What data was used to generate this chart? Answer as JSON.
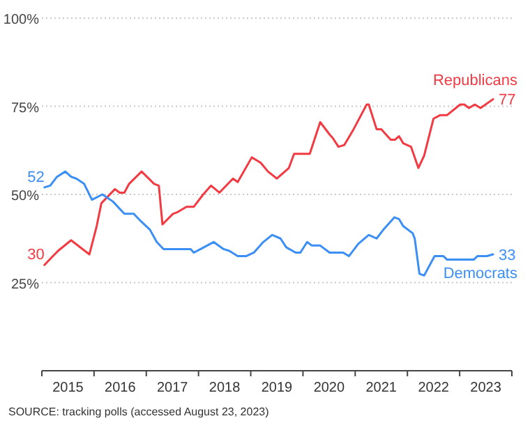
{
  "chart_data": {
    "type": "line",
    "xlim": [
      2015,
      2024
    ],
    "ylim": [
      0,
      100
    ],
    "xticks": [
      {
        "value": 2015,
        "label": null
      },
      {
        "value": 2015.5,
        "label": "2015"
      },
      {
        "value": 2016,
        "label": null
      },
      {
        "value": 2016.5,
        "label": "2016"
      },
      {
        "value": 2017,
        "label": null
      },
      {
        "value": 2017.5,
        "label": "2017"
      },
      {
        "value": 2018,
        "label": null
      },
      {
        "value": 2018.5,
        "label": "2018"
      },
      {
        "value": 2019,
        "label": null
      },
      {
        "value": 2019.5,
        "label": "2019"
      },
      {
        "value": 2020,
        "label": null
      },
      {
        "value": 2020.5,
        "label": "2020"
      },
      {
        "value": 2021,
        "label": null
      },
      {
        "value": 2021.5,
        "label": "2021"
      },
      {
        "value": 2022,
        "label": null
      },
      {
        "value": 2022.5,
        "label": "2022"
      },
      {
        "value": 2023,
        "label": null
      },
      {
        "value": 2023.5,
        "label": "2023"
      },
      {
        "value": 2024,
        "label": null
      }
    ],
    "yticks": [
      {
        "value": 25,
        "label": "25%"
      },
      {
        "value": 50,
        "label": "50%"
      },
      {
        "value": 75,
        "label": "75%"
      },
      {
        "value": 100,
        "label": "100%"
      }
    ],
    "grid": "y",
    "marker": "none",
    "line_style": "solid",
    "series": [
      {
        "name": "Republicans",
        "color": "#f23a43",
        "x": [
          2015.05,
          2015.18,
          2015.31,
          2015.56,
          2015.91,
          2016.05,
          2016.14,
          2016.4,
          2016.49,
          2016.58,
          2016.67,
          2016.91,
          2017.15,
          2017.24,
          2017.31,
          2017.51,
          2017.6,
          2017.77,
          2017.91,
          2018.09,
          2018.24,
          2018.4,
          2018.66,
          2018.75,
          2019.02,
          2019.19,
          2019.33,
          2019.5,
          2019.73,
          2019.83,
          2020.13,
          2020.33,
          2020.51,
          2020.57,
          2020.68,
          2020.79,
          2020.97,
          2021.22,
          2021.26,
          2021.41,
          2021.5,
          2021.68,
          2021.76,
          2021.84,
          2021.92,
          2022.07,
          2022.21,
          2022.32,
          2022.5,
          2022.63,
          2022.76,
          2023.01,
          2023.09,
          2023.18,
          2023.29,
          2023.4,
          2023.64
        ],
        "values": [
          30,
          32,
          34,
          37,
          33,
          41,
          47.5,
          51.5,
          50.5,
          50.5,
          53,
          56.5,
          53,
          52.5,
          41.5,
          44.5,
          45,
          46.5,
          46.5,
          50,
          52.5,
          50.5,
          54.5,
          53.5,
          60.5,
          59,
          56.5,
          54.5,
          57.5,
          61.5,
          61.5,
          70.5,
          67,
          66,
          63.5,
          64,
          68.5,
          75.5,
          75.5,
          68.5,
          68.5,
          65.5,
          65.5,
          66.5,
          64.5,
          63.5,
          57.5,
          61,
          71.5,
          72.5,
          72.5,
          75.5,
          75.5,
          74.5,
          75.5,
          74.5,
          77
        ],
        "value_labels": [
          "30",
          null,
          null,
          null,
          null,
          null,
          null,
          null,
          null,
          null,
          null,
          null,
          null,
          null,
          null,
          null,
          null,
          null,
          null,
          null,
          null,
          null,
          null,
          null,
          null,
          null,
          null,
          null,
          null,
          null,
          null,
          null,
          null,
          null,
          null,
          null,
          null,
          null,
          null,
          null,
          null,
          null,
          null,
          null,
          null,
          null,
          null,
          null,
          null,
          null,
          null,
          null,
          null,
          null,
          null,
          null,
          "77"
        ]
      },
      {
        "name": "Democrats",
        "color": "#3b8ef3",
        "x": [
          2015.05,
          2015.16,
          2015.29,
          2015.45,
          2015.56,
          2015.66,
          2015.81,
          2015.96,
          2016.16,
          2016.36,
          2016.58,
          2016.76,
          2016.89,
          2017.07,
          2017.2,
          2017.33,
          2017.85,
          2017.91,
          2018.04,
          2018.29,
          2018.48,
          2018.59,
          2018.75,
          2018.91,
          2019.06,
          2019.24,
          2019.41,
          2019.57,
          2019.68,
          2019.86,
          2019.95,
          2020.08,
          2020.17,
          2020.33,
          2020.51,
          2020.77,
          2020.88,
          2021.06,
          2021.26,
          2021.41,
          2021.54,
          2021.75,
          2021.84,
          2021.92,
          2022.1,
          2022.14,
          2022.23,
          2022.32,
          2022.52,
          2022.69,
          2022.76,
          2023.27,
          2023.34,
          2023.52,
          2023.64
        ],
        "values": [
          52,
          52.5,
          55,
          56.5,
          55,
          54.5,
          53,
          48.5,
          50,
          48,
          44.5,
          44.5,
          42.5,
          40,
          36.5,
          34.5,
          34.5,
          33.5,
          34.5,
          36.5,
          34.5,
          34,
          32.5,
          32.5,
          33.5,
          36.5,
          38.5,
          37.5,
          35,
          33.5,
          33.5,
          36.5,
          35.5,
          35.5,
          33.5,
          33.5,
          32.5,
          36,
          38.5,
          37.5,
          40,
          43.5,
          43,
          41,
          39,
          37.5,
          27.5,
          27,
          32.5,
          32.5,
          31.5,
          31.5,
          32.5,
          32.5,
          33
        ],
        "value_labels": [
          "52",
          null,
          null,
          null,
          null,
          null,
          null,
          null,
          null,
          null,
          null,
          null,
          null,
          null,
          null,
          null,
          null,
          null,
          null,
          null,
          null,
          null,
          null,
          null,
          null,
          null,
          null,
          null,
          null,
          null,
          null,
          null,
          null,
          null,
          null,
          null,
          null,
          null,
          null,
          null,
          null,
          null,
          null,
          null,
          null,
          null,
          null,
          null,
          null,
          null,
          null,
          null,
          null,
          null,
          "33"
        ]
      }
    ],
    "annotations": [
      "SOURCE: tracking polls (accessed August 23, 2023)"
    ]
  }
}
